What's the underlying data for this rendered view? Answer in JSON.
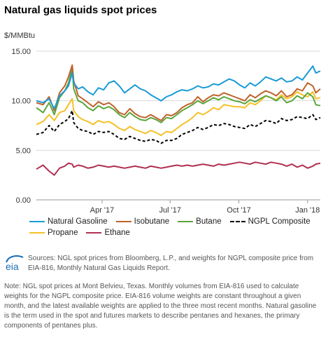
{
  "title": "Natural gas liquids spot prices",
  "unit_label": "$/MMBtu",
  "chart_data": {
    "type": "line",
    "title": "Natural gas liquids spot prices",
    "ylabel": "$/MMBtu",
    "xlabel": "",
    "ylim": [
      0,
      15
    ],
    "yticks": [
      "0.00",
      "5.00",
      "10.00",
      "15.00"
    ],
    "x_axis": {
      "start": "2017-01-03",
      "end": "2018-01-18",
      "ticks": [
        {
          "label": "Apr '17",
          "date": "2017-04-01"
        },
        {
          "label": "Jul '17",
          "date": "2017-07-01"
        },
        {
          "label": "Oct '17",
          "date": "2017-10-01"
        },
        {
          "label": "Jan '18",
          "date": "2018-01-01"
        }
      ]
    },
    "grid": "horizontal",
    "legend_position": "bottom",
    "series": [
      {
        "name": "Natural Gasoline",
        "color": "#1a9bd7",
        "dash": false,
        "x": [
          "2017-01-03",
          "2017-01-12",
          "2017-01-20",
          "2017-01-27",
          "2017-02-03",
          "2017-02-10",
          "2017-02-15",
          "2017-02-20",
          "2017-02-22",
          "2017-02-28",
          "2017-03-06",
          "2017-03-13",
          "2017-03-20",
          "2017-03-27",
          "2017-04-03",
          "2017-04-10",
          "2017-04-17",
          "2017-04-24",
          "2017-05-01",
          "2017-05-08",
          "2017-05-15",
          "2017-05-22",
          "2017-05-29",
          "2017-06-05",
          "2017-06-12",
          "2017-06-19",
          "2017-06-26",
          "2017-07-03",
          "2017-07-10",
          "2017-07-17",
          "2017-07-24",
          "2017-07-31",
          "2017-08-07",
          "2017-08-14",
          "2017-08-21",
          "2017-08-28",
          "2017-09-04",
          "2017-09-11",
          "2017-09-18",
          "2017-09-25",
          "2017-10-02",
          "2017-10-09",
          "2017-10-16",
          "2017-10-23",
          "2017-10-30",
          "2017-11-06",
          "2017-11-13",
          "2017-11-20",
          "2017-11-27",
          "2017-12-04",
          "2017-12-11",
          "2017-12-18",
          "2017-12-25",
          "2018-01-01",
          "2018-01-08",
          "2018-01-12",
          "2018-01-18"
        ],
        "y": [
          10.0,
          9.8,
          10.2,
          9.2,
          10.5,
          11.0,
          11.5,
          12.8,
          11.8,
          11.2,
          11.4,
          10.9,
          10.6,
          11.3,
          11.1,
          11.8,
          12.0,
          11.5,
          10.8,
          11.2,
          11.6,
          11.2,
          11.0,
          10.6,
          10.3,
          10.0,
          10.4,
          10.6,
          10.9,
          11.1,
          11.0,
          11.2,
          11.5,
          11.3,
          11.4,
          11.7,
          11.6,
          11.9,
          12.2,
          12.0,
          11.6,
          11.3,
          11.8,
          11.5,
          11.9,
          12.4,
          12.2,
          12.0,
          12.3,
          11.9,
          12.0,
          12.4,
          12.1,
          12.8,
          13.5,
          12.8,
          13.0
        ]
      },
      {
        "name": "Isobutane",
        "color": "#c0622a",
        "dash": false,
        "x": [
          "2017-01-03",
          "2017-01-12",
          "2017-01-20",
          "2017-01-27",
          "2017-02-03",
          "2017-02-10",
          "2017-02-15",
          "2017-02-20",
          "2017-02-22",
          "2017-02-28",
          "2017-03-06",
          "2017-03-13",
          "2017-03-20",
          "2017-03-27",
          "2017-04-03",
          "2017-04-10",
          "2017-04-17",
          "2017-04-24",
          "2017-05-01",
          "2017-05-08",
          "2017-05-15",
          "2017-05-22",
          "2017-05-29",
          "2017-06-05",
          "2017-06-12",
          "2017-06-19",
          "2017-06-26",
          "2017-07-03",
          "2017-07-10",
          "2017-07-17",
          "2017-07-24",
          "2017-07-31",
          "2017-08-07",
          "2017-08-14",
          "2017-08-21",
          "2017-08-28",
          "2017-09-04",
          "2017-09-11",
          "2017-09-18",
          "2017-09-25",
          "2017-10-02",
          "2017-10-09",
          "2017-10-16",
          "2017-10-23",
          "2017-10-30",
          "2017-11-06",
          "2017-11-13",
          "2017-11-20",
          "2017-11-27",
          "2017-12-04",
          "2017-12-11",
          "2017-12-18",
          "2017-12-25",
          "2018-01-01",
          "2018-01-08",
          "2018-01-12",
          "2018-01-18"
        ],
        "y": [
          9.8,
          9.6,
          10.4,
          9.0,
          10.8,
          11.5,
          12.4,
          13.6,
          12.0,
          10.5,
          10.2,
          9.8,
          9.4,
          9.9,
          9.6,
          9.8,
          9.4,
          8.8,
          8.6,
          9.2,
          8.7,
          8.4,
          8.3,
          8.6,
          8.3,
          8.0,
          8.6,
          8.5,
          8.8,
          9.3,
          9.6,
          9.8,
          10.4,
          9.9,
          10.3,
          10.6,
          10.5,
          10.8,
          10.6,
          10.4,
          10.2,
          10.0,
          10.6,
          10.3,
          10.7,
          11.0,
          10.8,
          10.5,
          11.0,
          10.4,
          10.6,
          11.2,
          11.0,
          11.8,
          11.5,
          10.8,
          11.2
        ]
      },
      {
        "name": "Butane",
        "color": "#5ba53c",
        "dash": false,
        "x": [
          "2017-01-03",
          "2017-01-12",
          "2017-01-20",
          "2017-01-27",
          "2017-02-03",
          "2017-02-10",
          "2017-02-15",
          "2017-02-20",
          "2017-02-22",
          "2017-02-28",
          "2017-03-06",
          "2017-03-13",
          "2017-03-20",
          "2017-03-27",
          "2017-04-03",
          "2017-04-10",
          "2017-04-17",
          "2017-04-24",
          "2017-05-01",
          "2017-05-08",
          "2017-05-15",
          "2017-05-22",
          "2017-05-29",
          "2017-06-05",
          "2017-06-12",
          "2017-06-19",
          "2017-06-26",
          "2017-07-03",
          "2017-07-10",
          "2017-07-17",
          "2017-07-24",
          "2017-07-31",
          "2017-08-07",
          "2017-08-14",
          "2017-08-21",
          "2017-08-28",
          "2017-09-04",
          "2017-09-11",
          "2017-09-18",
          "2017-09-25",
          "2017-10-02",
          "2017-10-09",
          "2017-10-16",
          "2017-10-23",
          "2017-10-30",
          "2017-11-06",
          "2017-11-13",
          "2017-11-20",
          "2017-11-27",
          "2017-12-04",
          "2017-12-11",
          "2017-12-18",
          "2017-12-25",
          "2018-01-01",
          "2018-01-08",
          "2018-01-12",
          "2018-01-18"
        ],
        "y": [
          9.3,
          8.8,
          9.8,
          8.6,
          10.3,
          11.0,
          11.8,
          13.2,
          11.2,
          10.0,
          9.8,
          9.3,
          9.0,
          9.5,
          9.2,
          9.4,
          9.1,
          8.6,
          8.3,
          8.8,
          8.4,
          8.1,
          8.0,
          8.3,
          8.1,
          7.8,
          8.3,
          8.2,
          8.6,
          9.0,
          9.3,
          9.6,
          10.0,
          9.7,
          10.0,
          10.3,
          10.1,
          10.4,
          10.2,
          10.0,
          9.9,
          9.7,
          10.1,
          9.9,
          10.2,
          10.5,
          10.3,
          10.0,
          10.4,
          9.8,
          10.0,
          10.5,
          10.2,
          10.8,
          10.4,
          9.6,
          9.5
        ]
      },
      {
        "name": "NGPL Composite",
        "color": "#000000",
        "dash": true,
        "x": [
          "2017-01-03",
          "2017-01-12",
          "2017-01-20",
          "2017-01-27",
          "2017-02-03",
          "2017-02-10",
          "2017-02-15",
          "2017-02-20",
          "2017-02-22",
          "2017-02-28",
          "2017-03-06",
          "2017-03-13",
          "2017-03-20",
          "2017-03-27",
          "2017-04-03",
          "2017-04-10",
          "2017-04-17",
          "2017-04-24",
          "2017-05-01",
          "2017-05-08",
          "2017-05-15",
          "2017-05-22",
          "2017-05-29",
          "2017-06-05",
          "2017-06-12",
          "2017-06-19",
          "2017-06-26",
          "2017-07-03",
          "2017-07-10",
          "2017-07-17",
          "2017-07-24",
          "2017-07-31",
          "2017-08-07",
          "2017-08-14",
          "2017-08-21",
          "2017-08-28",
          "2017-09-04",
          "2017-09-11",
          "2017-09-18",
          "2017-09-25",
          "2017-10-02",
          "2017-10-09",
          "2017-10-16",
          "2017-10-23",
          "2017-10-30",
          "2017-11-06",
          "2017-11-13",
          "2017-11-20",
          "2017-11-27",
          "2017-12-04",
          "2017-12-11",
          "2017-12-18",
          "2017-12-25",
          "2018-01-01",
          "2018-01-08",
          "2018-01-12",
          "2018-01-18"
        ],
        "y": [
          6.6,
          6.8,
          7.5,
          6.9,
          7.6,
          7.9,
          8.2,
          9.0,
          7.8,
          7.2,
          7.0,
          6.9,
          6.6,
          6.9,
          6.8,
          6.9,
          6.6,
          6.2,
          6.1,
          6.4,
          6.2,
          6.0,
          5.9,
          6.1,
          6.0,
          5.7,
          6.0,
          6.0,
          6.2,
          6.6,
          6.8,
          7.0,
          7.3,
          7.1,
          7.3,
          7.6,
          7.5,
          7.7,
          7.6,
          7.4,
          7.3,
          7.2,
          7.6,
          7.4,
          7.7,
          8.0,
          7.9,
          7.7,
          8.2,
          8.0,
          8.1,
          8.4,
          8.3,
          8.2,
          8.6,
          8.1,
          8.3
        ]
      },
      {
        "name": "Propane",
        "color": "#f5c127",
        "dash": false,
        "x": [
          "2017-01-03",
          "2017-01-12",
          "2017-01-20",
          "2017-01-27",
          "2017-02-03",
          "2017-02-10",
          "2017-02-15",
          "2017-02-20",
          "2017-02-22",
          "2017-02-28",
          "2017-03-06",
          "2017-03-13",
          "2017-03-20",
          "2017-03-27",
          "2017-04-03",
          "2017-04-10",
          "2017-04-17",
          "2017-04-24",
          "2017-05-01",
          "2017-05-08",
          "2017-05-15",
          "2017-05-22",
          "2017-05-29",
          "2017-06-05",
          "2017-06-12",
          "2017-06-19",
          "2017-06-26",
          "2017-07-03",
          "2017-07-10",
          "2017-07-17",
          "2017-07-24",
          "2017-07-31",
          "2017-08-07",
          "2017-08-14",
          "2017-08-21",
          "2017-08-28",
          "2017-09-04",
          "2017-09-11",
          "2017-09-18",
          "2017-09-25",
          "2017-10-02",
          "2017-10-09",
          "2017-10-16",
          "2017-10-23",
          "2017-10-30",
          "2017-11-06",
          "2017-11-13",
          "2017-11-20",
          "2017-11-27",
          "2017-12-04",
          "2017-12-11",
          "2017-12-18",
          "2017-12-25",
          "2018-01-01",
          "2018-01-08",
          "2018-01-12",
          "2018-01-18"
        ],
        "y": [
          7.6,
          7.9,
          8.6,
          8.0,
          8.8,
          9.0,
          9.6,
          10.2,
          9.0,
          8.4,
          8.1,
          7.9,
          7.6,
          8.0,
          7.8,
          7.9,
          7.6,
          7.2,
          7.0,
          7.4,
          7.1,
          6.9,
          6.7,
          7.0,
          6.8,
          6.5,
          6.9,
          6.8,
          7.2,
          7.6,
          7.9,
          8.3,
          8.8,
          8.6,
          8.9,
          9.3,
          9.1,
          9.6,
          9.5,
          9.4,
          9.4,
          9.3,
          9.8,
          9.6,
          10.0,
          10.5,
          10.3,
          10.1,
          10.6,
          10.2,
          10.4,
          10.9,
          10.6,
          10.4,
          10.9,
          10.2,
          10.3
        ]
      },
      {
        "name": "Ethane",
        "color": "#b03050",
        "dash": false,
        "x": [
          "2017-01-03",
          "2017-01-12",
          "2017-01-20",
          "2017-01-27",
          "2017-02-03",
          "2017-02-10",
          "2017-02-15",
          "2017-02-20",
          "2017-02-22",
          "2017-02-28",
          "2017-03-06",
          "2017-03-13",
          "2017-03-20",
          "2017-03-27",
          "2017-04-03",
          "2017-04-10",
          "2017-04-17",
          "2017-04-24",
          "2017-05-01",
          "2017-05-08",
          "2017-05-15",
          "2017-05-22",
          "2017-05-29",
          "2017-06-05",
          "2017-06-12",
          "2017-06-19",
          "2017-06-26",
          "2017-07-03",
          "2017-07-10",
          "2017-07-17",
          "2017-07-24",
          "2017-07-31",
          "2017-08-07",
          "2017-08-14",
          "2017-08-21",
          "2017-08-28",
          "2017-09-04",
          "2017-09-11",
          "2017-09-18",
          "2017-09-25",
          "2017-10-02",
          "2017-10-09",
          "2017-10-16",
          "2017-10-23",
          "2017-10-30",
          "2017-11-06",
          "2017-11-13",
          "2017-11-20",
          "2017-11-27",
          "2017-12-04",
          "2017-12-11",
          "2017-12-18",
          "2017-12-25",
          "2018-01-01",
          "2018-01-08",
          "2018-01-12",
          "2018-01-18"
        ],
        "y": [
          3.1,
          3.5,
          2.9,
          2.5,
          3.2,
          3.4,
          3.7,
          3.6,
          3.3,
          3.5,
          3.4,
          3.2,
          3.3,
          3.5,
          3.4,
          3.3,
          3.4,
          3.3,
          3.2,
          3.3,
          3.4,
          3.3,
          3.2,
          3.4,
          3.3,
          3.2,
          3.3,
          3.4,
          3.5,
          3.4,
          3.5,
          3.4,
          3.5,
          3.6,
          3.5,
          3.4,
          3.6,
          3.5,
          3.6,
          3.7,
          3.8,
          3.7,
          3.6,
          3.8,
          3.7,
          3.6,
          3.8,
          3.7,
          3.6,
          3.4,
          3.6,
          3.3,
          3.5,
          3.2,
          3.4,
          3.6,
          3.7
        ]
      }
    ]
  },
  "sources": "Sources: NGL spot prices from Bloomberg, L.P., and weights for NGPL composite price from EIA-816, Monthly Natural Gas Liquids Report.",
  "note": "Note: NGL spot prices at Mont Belvieu, Texas. Monthly volumes from EIA-816 used to calculate weights for the NGPL composite price. EIA-816 volume weights are constant throughout a given month, and the latest available weights are applied to the three most recent months. Natural gasoline is the term used in the spot and futures markets to describe pentanes and hexanes, the primary components of pentanes plus.",
  "logo": {
    "text": "eia",
    "color": "#1a6eb5"
  }
}
